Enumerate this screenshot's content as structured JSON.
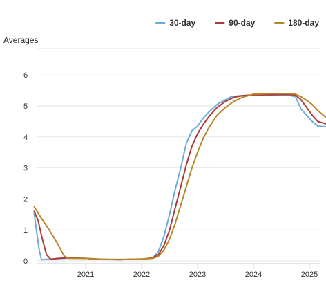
{
  "chart_data": {
    "type": "line",
    "title": "",
    "ylabel": "Averages",
    "xlabel": "",
    "ylim": [
      0,
      7
    ],
    "yticks": [
      0,
      1,
      2,
      3,
      4,
      5,
      6
    ],
    "xlim": [
      2020.0,
      2025.3
    ],
    "xticks": [
      {
        "value": 2021,
        "label": "2021"
      },
      {
        "value": 2022,
        "label": "2022"
      },
      {
        "value": 2023,
        "label": "2023"
      },
      {
        "value": 2024,
        "label": "2024"
      },
      {
        "value": 2025,
        "label": "2025"
      }
    ],
    "grid": true,
    "legend_position": "top-right",
    "series": [
      {
        "name": "30-day",
        "color": "#6aaed6",
        "points": [
          [
            2020.08,
            1.55
          ],
          [
            2020.12,
            1.0
          ],
          [
            2020.17,
            0.35
          ],
          [
            2020.21,
            0.04
          ],
          [
            2020.3,
            0.05
          ],
          [
            2020.5,
            0.07
          ],
          [
            2020.7,
            0.09
          ],
          [
            2021.0,
            0.08
          ],
          [
            2021.3,
            0.05
          ],
          [
            2021.6,
            0.05
          ],
          [
            2021.8,
            0.05
          ],
          [
            2022.0,
            0.05
          ],
          [
            2022.2,
            0.1
          ],
          [
            2022.3,
            0.3
          ],
          [
            2022.4,
            0.8
          ],
          [
            2022.5,
            1.5
          ],
          [
            2022.6,
            2.3
          ],
          [
            2022.7,
            3.0
          ],
          [
            2022.8,
            3.8
          ],
          [
            2022.9,
            4.2
          ],
          [
            2023.0,
            4.35
          ],
          [
            2023.1,
            4.6
          ],
          [
            2023.2,
            4.8
          ],
          [
            2023.35,
            5.05
          ],
          [
            2023.5,
            5.2
          ],
          [
            2023.6,
            5.3
          ],
          [
            2023.75,
            5.33
          ],
          [
            2024.0,
            5.35
          ],
          [
            2024.3,
            5.35
          ],
          [
            2024.6,
            5.36
          ],
          [
            2024.75,
            5.3
          ],
          [
            2024.85,
            4.9
          ],
          [
            2024.95,
            4.7
          ],
          [
            2025.05,
            4.5
          ],
          [
            2025.15,
            4.35
          ],
          [
            2025.3,
            4.33
          ]
        ]
      },
      {
        "name": "90-day",
        "color": "#b03a3a",
        "points": [
          [
            2020.08,
            1.6
          ],
          [
            2020.15,
            1.3
          ],
          [
            2020.22,
            0.75
          ],
          [
            2020.3,
            0.2
          ],
          [
            2020.38,
            0.05
          ],
          [
            2020.5,
            0.08
          ],
          [
            2020.7,
            0.1
          ],
          [
            2021.0,
            0.08
          ],
          [
            2021.3,
            0.05
          ],
          [
            2021.6,
            0.04
          ],
          [
            2021.8,
            0.05
          ],
          [
            2022.0,
            0.05
          ],
          [
            2022.2,
            0.1
          ],
          [
            2022.3,
            0.2
          ],
          [
            2022.4,
            0.5
          ],
          [
            2022.5,
            1.0
          ],
          [
            2022.6,
            1.7
          ],
          [
            2022.7,
            2.4
          ],
          [
            2022.8,
            3.1
          ],
          [
            2022.9,
            3.7
          ],
          [
            2023.0,
            4.1
          ],
          [
            2023.1,
            4.4
          ],
          [
            2023.2,
            4.65
          ],
          [
            2023.35,
            4.95
          ],
          [
            2023.5,
            5.15
          ],
          [
            2023.65,
            5.28
          ],
          [
            2023.8,
            5.33
          ],
          [
            2024.0,
            5.36
          ],
          [
            2024.3,
            5.36
          ],
          [
            2024.6,
            5.37
          ],
          [
            2024.75,
            5.35
          ],
          [
            2024.85,
            5.2
          ],
          [
            2024.95,
            4.95
          ],
          [
            2025.05,
            4.7
          ],
          [
            2025.15,
            4.5
          ],
          [
            2025.3,
            4.42
          ]
        ]
      },
      {
        "name": "180-day",
        "color": "#b8862a",
        "points": [
          [
            2020.08,
            1.75
          ],
          [
            2020.2,
            1.4
          ],
          [
            2020.35,
            1.0
          ],
          [
            2020.5,
            0.55
          ],
          [
            2020.62,
            0.15
          ],
          [
            2020.7,
            0.08
          ],
          [
            2021.0,
            0.08
          ],
          [
            2021.3,
            0.05
          ],
          [
            2021.6,
            0.04
          ],
          [
            2021.8,
            0.05
          ],
          [
            2022.0,
            0.06
          ],
          [
            2022.2,
            0.08
          ],
          [
            2022.3,
            0.15
          ],
          [
            2022.4,
            0.35
          ],
          [
            2022.5,
            0.7
          ],
          [
            2022.6,
            1.2
          ],
          [
            2022.7,
            1.8
          ],
          [
            2022.8,
            2.4
          ],
          [
            2022.9,
            3.0
          ],
          [
            2023.0,
            3.5
          ],
          [
            2023.1,
            3.95
          ],
          [
            2023.2,
            4.3
          ],
          [
            2023.35,
            4.7
          ],
          [
            2023.5,
            4.95
          ],
          [
            2023.65,
            5.15
          ],
          [
            2023.8,
            5.28
          ],
          [
            2024.0,
            5.38
          ],
          [
            2024.3,
            5.4
          ],
          [
            2024.6,
            5.4
          ],
          [
            2024.75,
            5.38
          ],
          [
            2024.85,
            5.3
          ],
          [
            2024.95,
            5.18
          ],
          [
            2025.05,
            5.05
          ],
          [
            2025.15,
            4.85
          ],
          [
            2025.3,
            4.62
          ]
        ]
      }
    ]
  }
}
